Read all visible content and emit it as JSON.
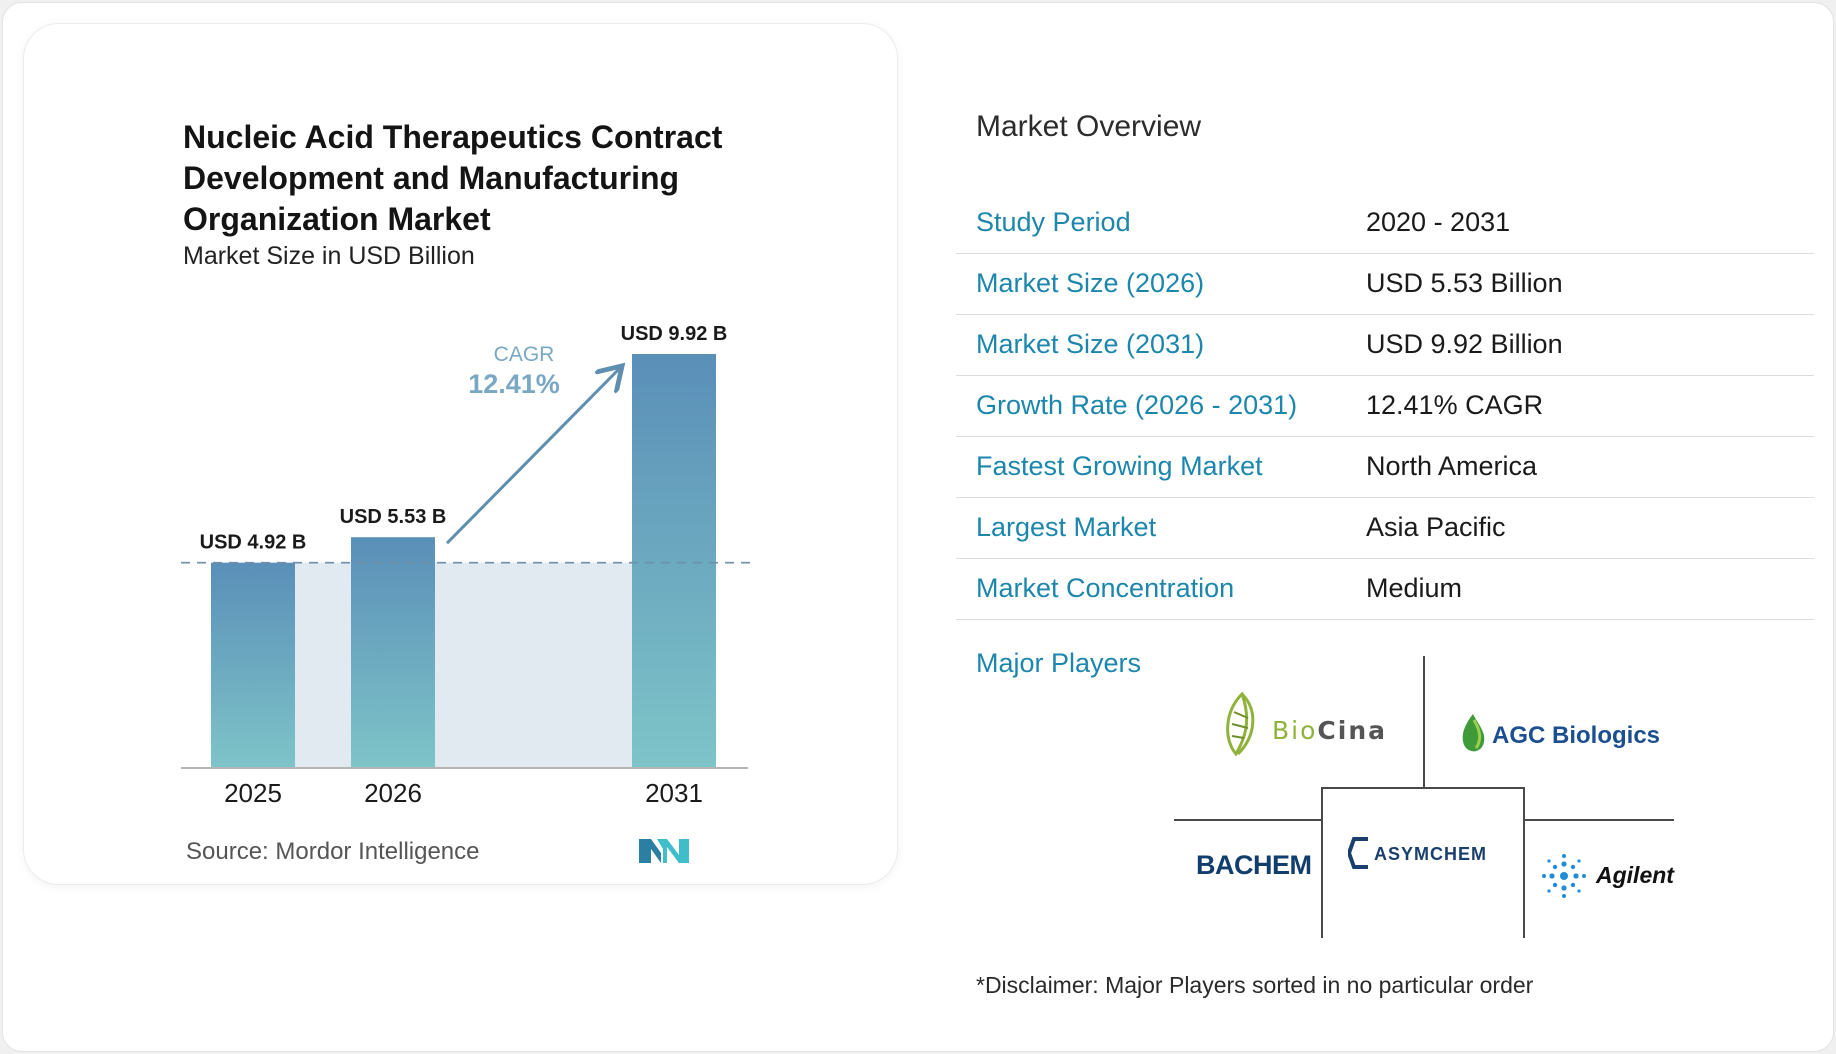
{
  "chart_data": {
    "type": "bar",
    "title": "Nucleic Acid Therapeutics Contract Development and Manufacturing Organization Market",
    "subtitle": "Market Size in USD Billion",
    "categories": [
      "2025",
      "2026",
      "2031"
    ],
    "values": [
      4.92,
      5.53,
      9.92
    ],
    "data_labels": [
      "USD 4.92 B",
      "USD 5.53 B",
      "USD 9.92 B"
    ],
    "cagr_label": "CAGR",
    "cagr_value": "12.41%",
    "ylim": [
      0,
      10.5
    ],
    "grid": false
  },
  "source": {
    "label": "Source:",
    "name": "Mordor Intelligence"
  },
  "overview": {
    "title": "Market Overview",
    "rows": [
      {
        "label": "Study Period",
        "value": "2020 - 2031"
      },
      {
        "label": "Market Size (2026)",
        "value": "USD 5.53 Billion"
      },
      {
        "label": "Market Size (2031)",
        "value": "USD 9.92 Billion"
      },
      {
        "label": "Growth Rate (2026 - 2031)",
        "value": "12.41% CAGR"
      },
      {
        "label": "Fastest Growing Market",
        "value": "North America"
      },
      {
        "label": "Largest Market",
        "value": "Asia Pacific"
      },
      {
        "label": "Market Concentration",
        "value": "Medium"
      }
    ]
  },
  "players": {
    "label": "Major Players",
    "logos": [
      {
        "name": "BioCina",
        "text_a": "Bio",
        "text_b": "Cina"
      },
      {
        "name": "AGC Biologics",
        "text": "AGC Biologics"
      },
      {
        "name": "BACHEM",
        "text": "BACHEM"
      },
      {
        "name": "ASYMCHEM",
        "text": "ASYMCHEM"
      },
      {
        "name": "Agilent",
        "text": "Agilent"
      }
    ]
  },
  "disclaimer": "*Disclaimer: Major Players sorted in no particular order",
  "colors": {
    "bar_top": "#5a8fb8",
    "bar_bottom": "#7ec4c8",
    "label_blue": "#1c86ad",
    "cagr_arrow": "#5f8fb0",
    "shade": "#e1e9f1"
  }
}
